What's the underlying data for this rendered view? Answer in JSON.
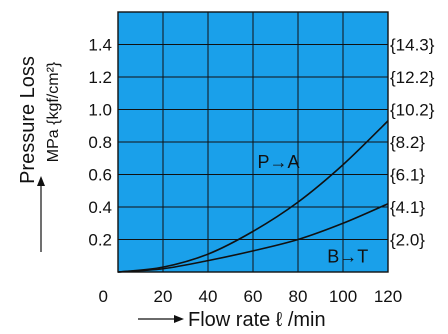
{
  "chart_data": {
    "type": "line",
    "xlabel": "Flow rate ℓ /min",
    "ylabel": "Pressure Loss",
    "ylabel_units": "MPa {kgf/cm²}",
    "xlim": [
      0,
      120
    ],
    "ylim": [
      0,
      1.6
    ],
    "x_ticks": [
      0,
      20,
      40,
      60,
      80,
      100,
      120
    ],
    "y_ticks": [
      0.2,
      0.4,
      0.6,
      0.8,
      1.0,
      1.2,
      1.4
    ],
    "y_tick_labels": [
      "0.2",
      "0.4",
      "0.6",
      "0.8",
      "1.0",
      "1.2",
      "1.4"
    ],
    "y2_tick_labels": [
      "{2.0}",
      "{4.1}",
      "{6.1}",
      "{8.2}",
      "{10.2}",
      "{12.2}",
      "{14.3}"
    ],
    "grid": true,
    "background_color": "#1aa0ea",
    "line_color": "#111111",
    "series": [
      {
        "name": "P→A",
        "x": [
          0,
          20,
          40,
          60,
          80,
          100,
          120
        ],
        "y": [
          0.0,
          0.03,
          0.11,
          0.25,
          0.43,
          0.66,
          0.93
        ]
      },
      {
        "name": "B→T",
        "x": [
          0,
          20,
          40,
          60,
          80,
          100,
          120
        ],
        "y": [
          0.0,
          0.02,
          0.07,
          0.13,
          0.2,
          0.3,
          0.42
        ]
      }
    ]
  }
}
